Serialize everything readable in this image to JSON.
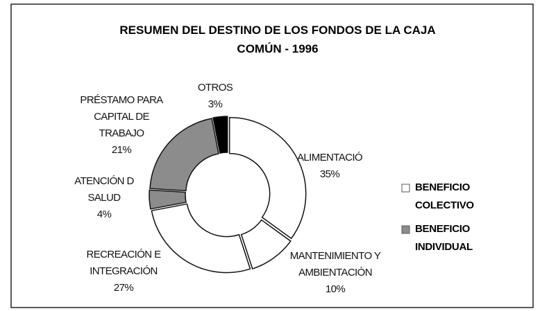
{
  "chart_data": {
    "type": "donut",
    "title": "RESUMEN DEL DESTINO DE LOS FONDOS DE LA CAJA COMÚN - 1996",
    "categories": [
      "ALIMENTACIÓ",
      "MANTENIMIENTO Y\nAMBIENTACIÓN",
      "RECREACIÓN E\nINTEGRACIÓN",
      "ATENCIÓN D\nSALUD",
      "PRÉSTAMO PARA\nCAPITAL DE\nTRABAJO",
      "OTROS"
    ],
    "values": [
      35,
      10,
      27,
      4,
      21,
      3
    ],
    "value_labels": [
      "35%",
      "10%",
      "27%",
      "4%",
      "21%",
      "3%"
    ],
    "colors": [
      "#ffffff",
      "#ffffff",
      "#ffffff",
      "#8c8c8c",
      "#8c8c8c",
      "#000000"
    ],
    "legend": [
      {
        "name": "BENEFICIO\nCOLECTIVO",
        "color": "#ffffff"
      },
      {
        "name": "BENEFICIO\nINDIVIDUAL",
        "color": "#8c8c8c"
      }
    ]
  }
}
